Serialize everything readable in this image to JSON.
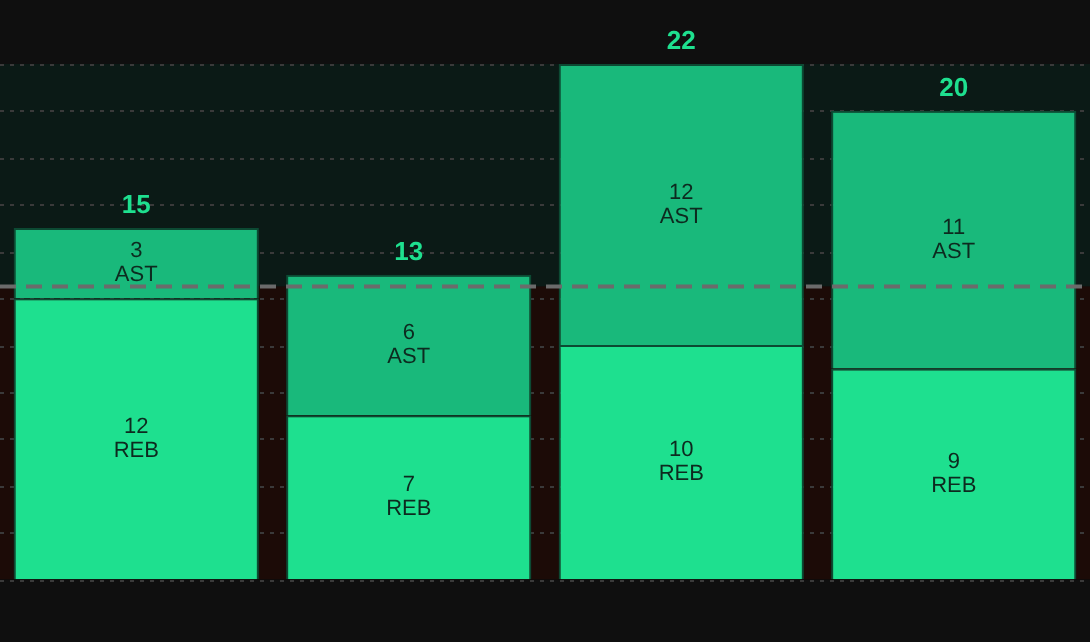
{
  "chart_data": {
    "type": "bar",
    "stacked": true,
    "categories": [
      null,
      null,
      null,
      null
    ],
    "series": [
      {
        "name": "REB",
        "color": "#1ee08f",
        "values": [
          12,
          7,
          10,
          9
        ]
      },
      {
        "name": "AST",
        "color": "#19b97b",
        "values": [
          3,
          6,
          12,
          11
        ]
      }
    ],
    "data_labels": true,
    "totals": [
      "15",
      "13",
      "22",
      "20"
    ],
    "ylim": [
      0,
      22
    ],
    "yticks": [
      {
        "value": 0,
        "label": null
      },
      {
        "value": 2,
        "label": null
      },
      {
        "value": 4,
        "label": null
      },
      {
        "value": 6,
        "label": null
      },
      {
        "value": 8,
        "label": null
      },
      {
        "value": 10,
        "label": null
      },
      {
        "value": 12,
        "label": null
      },
      {
        "value": 14,
        "label": null
      },
      {
        "value": 16,
        "label": null
      },
      {
        "value": 18,
        "label": null
      },
      {
        "value": 20,
        "label": null
      },
      {
        "value": 22,
        "label": null
      }
    ],
    "grid": "y",
    "legend": false,
    "ref_lines": [
      {
        "axis": "y",
        "value": 12.5,
        "color": "#6b6b6b",
        "line_style": "dashed"
      }
    ],
    "bands": [
      {
        "axis": "y",
        "from": 12.5,
        "to": 22,
        "color": "#0b1a16"
      },
      {
        "axis": "y",
        "from": 0,
        "to": 12.5,
        "color": "#1c0b07"
      }
    ]
  }
}
